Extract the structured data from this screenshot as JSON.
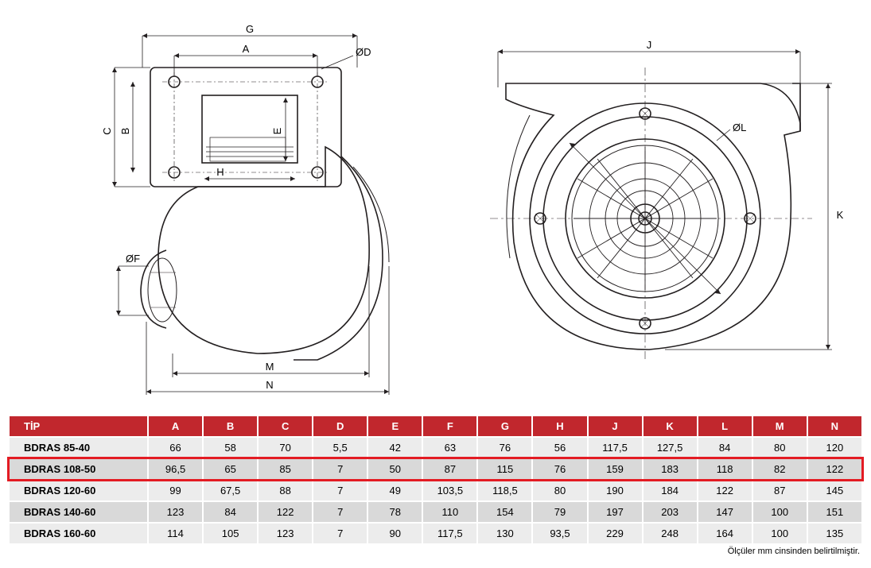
{
  "colors": {
    "header_bg": "#c1272d",
    "header_fg": "#ffffff",
    "row_odd_bg": "#ececec",
    "row_even_bg": "#d9d9d9",
    "highlight_border": "#e31b23",
    "line": "#231f20",
    "background": "#ffffff"
  },
  "drawing": {
    "stroke_width_main": 1.6,
    "stroke_width_thin": 0.8,
    "dim_labels_left": [
      "A",
      "B",
      "C",
      "ØD",
      "E",
      "ØF",
      "G",
      "H",
      "M",
      "N"
    ],
    "dim_labels_right": [
      "J",
      "K",
      "ØL"
    ]
  },
  "table": {
    "header_first": "TİP",
    "columns": [
      "A",
      "B",
      "C",
      "D",
      "E",
      "F",
      "G",
      "H",
      "J",
      "K",
      "L",
      "M",
      "N"
    ],
    "rows": [
      {
        "tip": "BDRAS 85-40",
        "vals": [
          "66",
          "58",
          "70",
          "5,5",
          "42",
          "63",
          "76",
          "56",
          "117,5",
          "127,5",
          "84",
          "80",
          "120"
        ]
      },
      {
        "tip": "BDRAS 108-50",
        "vals": [
          "96,5",
          "65",
          "85",
          "7",
          "50",
          "87",
          "115",
          "76",
          "159",
          "183",
          "118",
          "82",
          "122"
        ],
        "highlight": true
      },
      {
        "tip": "BDRAS 120-60",
        "vals": [
          "99",
          "67,5",
          "88",
          "7",
          "49",
          "103,5",
          "118,5",
          "80",
          "190",
          "184",
          "122",
          "87",
          "145"
        ]
      },
      {
        "tip": "BDRAS 140-60",
        "vals": [
          "123",
          "84",
          "122",
          "7",
          "78",
          "110",
          "154",
          "79",
          "197",
          "203",
          "147",
          "100",
          "151"
        ]
      },
      {
        "tip": "BDRAS 160-60",
        "vals": [
          "114",
          "105",
          "123",
          "7",
          "90",
          "117,5",
          "130",
          "93,5",
          "229",
          "248",
          "164",
          "100",
          "135"
        ]
      }
    ],
    "footnote": "Ölçüler mm cinsinden belirtilmiştir."
  }
}
